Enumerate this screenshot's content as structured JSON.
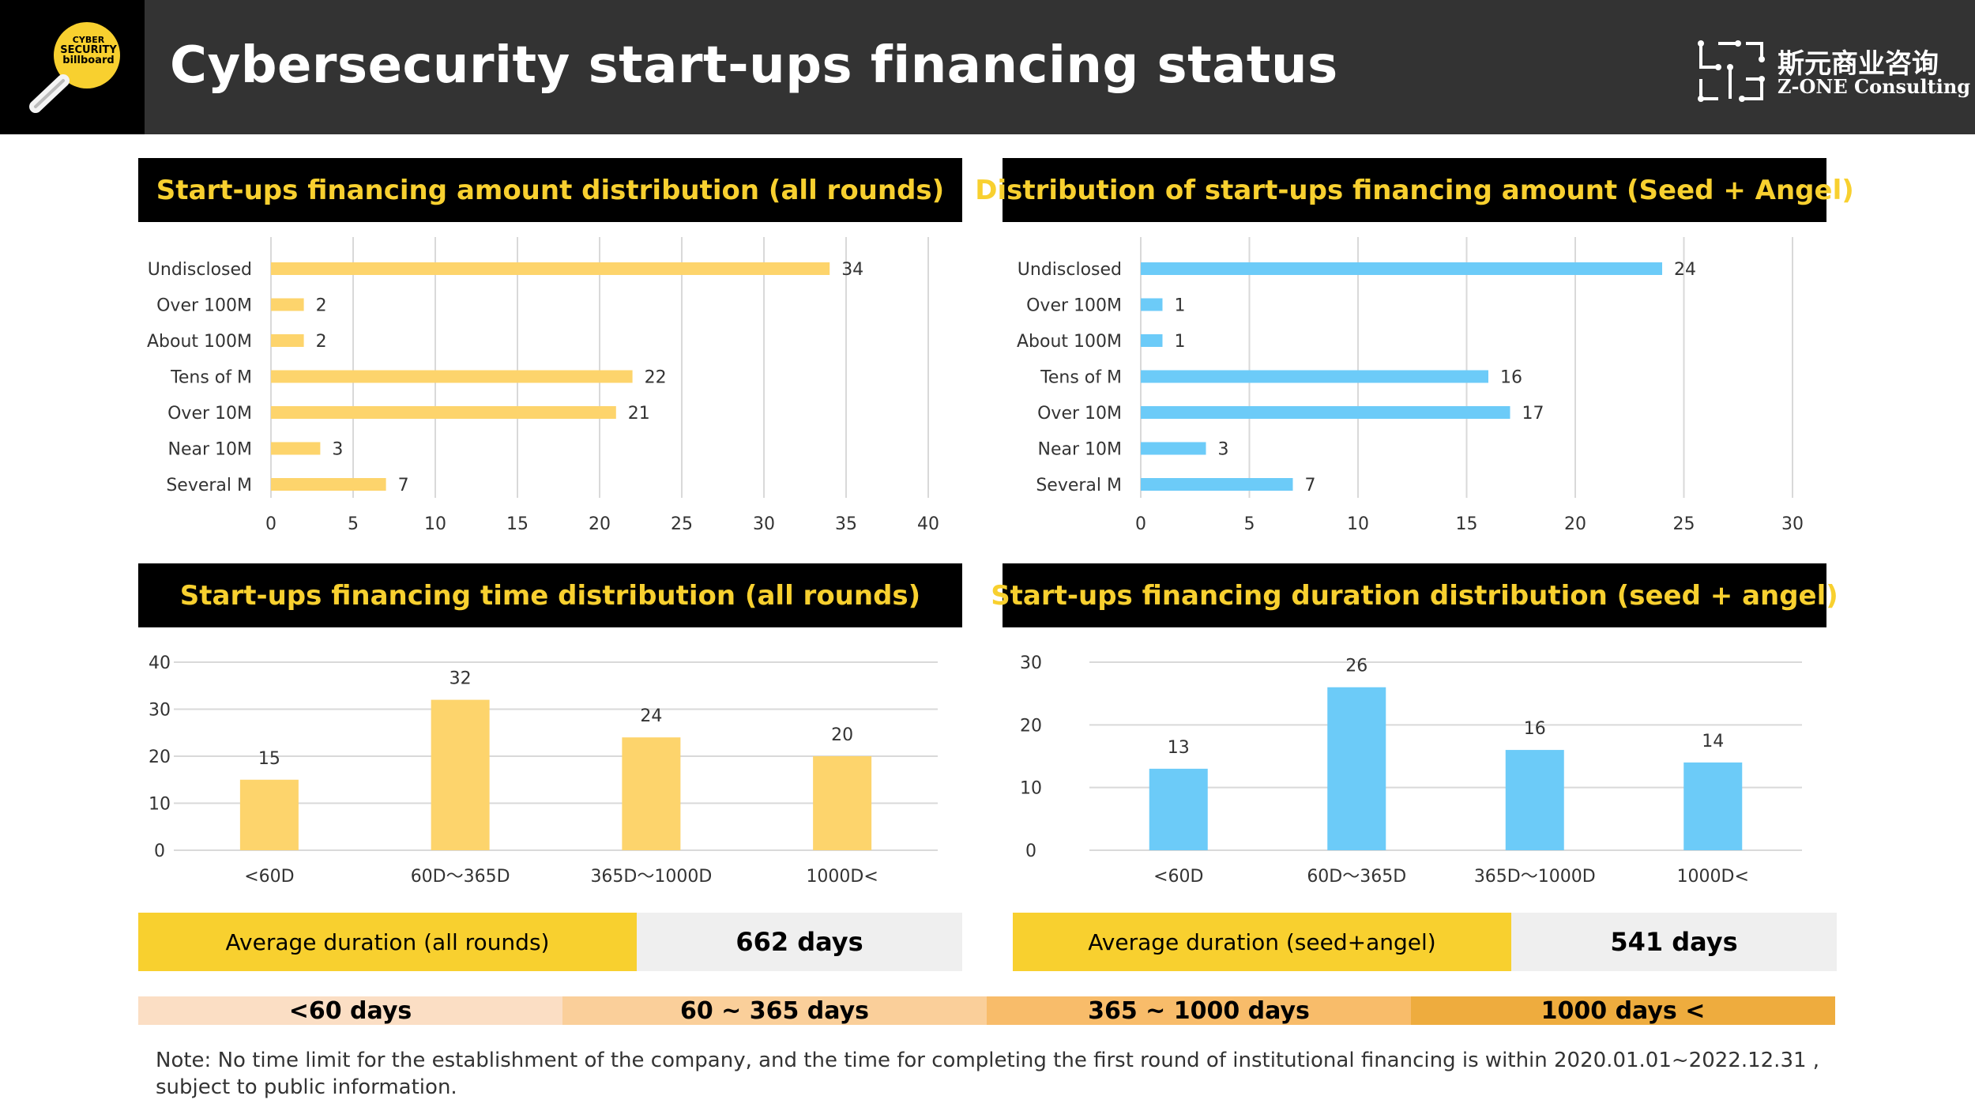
{
  "header": {
    "title": "Cybersecurity start-ups financing status",
    "logo_text": [
      "CYBER",
      "SECURITY",
      "billboard"
    ],
    "brand_cn": "斯元商业咨询",
    "brand_en": "Z-ONE Consulting"
  },
  "panels": {
    "p1_title": "Start-ups financing amount distribution (all rounds)",
    "p2_title": "Distribution of start-ups financing amount (Seed + Angel)",
    "p3_title": "Start-ups financing time distribution (all rounds)",
    "p4_title": "Start-ups financing duration distribution (seed + angel)"
  },
  "chart_data": [
    {
      "type": "bar",
      "orientation": "horizontal",
      "title": "Start-ups financing amount distribution (all rounds)",
      "categories": [
        "Undisclosed",
        "Over 100M",
        "About 100M",
        "Tens of M",
        "Over 10M",
        "Near 10M",
        "Several M"
      ],
      "values": [
        34,
        2,
        2,
        22,
        21,
        3,
        7
      ],
      "xlim": [
        0,
        40
      ],
      "ticks": [
        0,
        5,
        10,
        15,
        20,
        25,
        30,
        35,
        40
      ],
      "color": "#fdd46c",
      "grid": true
    },
    {
      "type": "bar",
      "orientation": "horizontal",
      "title": "Distribution of start-ups financing amount (Seed + Angel)",
      "categories": [
        "Undisclosed",
        "Over 100M",
        "About 100M",
        "Tens of M",
        "Over 10M",
        "Near 10M",
        "Several M"
      ],
      "values": [
        24,
        1,
        1,
        16,
        17,
        3,
        7
      ],
      "xlim": [
        0,
        30
      ],
      "ticks": [
        0,
        5,
        10,
        15,
        20,
        25,
        30
      ],
      "color": "#6ccbf8",
      "grid": true
    },
    {
      "type": "bar",
      "orientation": "vertical",
      "title": "Start-ups financing time distribution (all rounds)",
      "categories": [
        "<60D",
        "60D～365D",
        "365D～1000D",
        "1000D<"
      ],
      "values": [
        15,
        32,
        24,
        20
      ],
      "ylim": [
        0,
        40
      ],
      "ticks": [
        0,
        10,
        20,
        30,
        40
      ],
      "color": "#fdd46c",
      "grid": true
    },
    {
      "type": "bar",
      "orientation": "vertical",
      "title": "Start-ups financing duration distribution (seed + angel)",
      "categories": [
        "<60D",
        "60D～365D",
        "365D～1000D",
        "1000D<"
      ],
      "values": [
        13,
        26,
        16,
        14
      ],
      "ylim": [
        0,
        30
      ],
      "ticks": [
        0,
        10,
        20,
        30
      ],
      "color": "#6ccbf8",
      "grid": true
    }
  ],
  "averages": {
    "all_label": "Average duration (all rounds)",
    "all_value": "662 days",
    "seed_label": "Average duration (seed+angel)",
    "seed_value": "541 days"
  },
  "legend": [
    {
      "label": "<60 days",
      "color": "#fbdec4"
    },
    {
      "label": "60 ~ 365 days",
      "color": "#facf9a"
    },
    {
      "label": "365 ~ 1000 days",
      "color": "#f8bc6a"
    },
    {
      "label": "1000 days <",
      "color": "#eeac3e"
    }
  ],
  "note": "Note: No time limit for the establishment of the company, and the time for completing the first round of institutional financing is  within 2020.01.01~2022.12.31 , subject to public information."
}
